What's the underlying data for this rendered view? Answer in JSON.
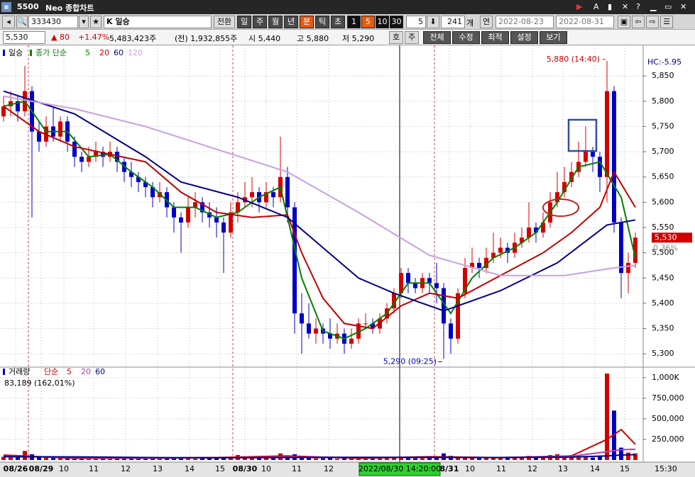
{
  "title_bar": {
    "screen_no": "5500",
    "title": "Neo 종합차트"
  },
  "toolbar": {
    "stock_code": "333430",
    "stock_name": "K 일승",
    "convert": "전환",
    "periods": [
      "일",
      "주",
      "월",
      "년",
      "분",
      "틱",
      "초"
    ],
    "minutes": [
      "1",
      "5",
      "10",
      "30"
    ],
    "interval": "5",
    "count": "241",
    "count_unit": "개",
    "continuous": "연",
    "start_date": "2022-08-23",
    "end_date": "2022-08-31"
  },
  "info_bar": {
    "price": "5,530",
    "change": "▲ 80",
    "change_rate": "+1.47%",
    "volume": "5,483,423주",
    "prev_volume": "(전) 1,932,855주",
    "open": "시 5,440",
    "high": "고 5,880",
    "low": "저 5,290",
    "quote_buttons": [
      "호",
      "주"
    ],
    "menu_buttons": [
      "전체",
      "수정",
      "최적",
      "설정",
      "보기"
    ]
  },
  "chart_data": [
    {
      "type": "candlestick",
      "name": "일승",
      "ma_label": "종가 단순",
      "up_color": "#d40000",
      "down_color": "#0000c8",
      "grid": true,
      "candles": [
        [
          5770,
          5810,
          5760,
          5790
        ],
        [
          5790,
          5820,
          5770,
          5800
        ],
        [
          5800,
          5810,
          5760,
          5780
        ],
        [
          5780,
          5870,
          5770,
          5820
        ],
        [
          5820,
          5830,
          5570,
          5740
        ],
        [
          5740,
          5760,
          5700,
          5720
        ],
        [
          5720,
          5770,
          5710,
          5750
        ],
        [
          5750,
          5790,
          5720,
          5730
        ],
        [
          5730,
          5770,
          5720,
          5760
        ],
        [
          5760,
          5770,
          5700,
          5720
        ],
        [
          5720,
          5730,
          5670,
          5690
        ],
        [
          5690,
          5700,
          5660,
          5680
        ],
        [
          5680,
          5710,
          5670,
          5690
        ],
        [
          5690,
          5720,
          5680,
          5700
        ],
        [
          5700,
          5710,
          5670,
          5690
        ],
        [
          5690,
          5720,
          5680,
          5700
        ],
        [
          5700,
          5710,
          5660,
          5680
        ],
        [
          5680,
          5690,
          5640,
          5660
        ],
        [
          5660,
          5680,
          5630,
          5650
        ],
        [
          5650,
          5660,
          5620,
          5640
        ],
        [
          5640,
          5650,
          5610,
          5630
        ],
        [
          5630,
          5640,
          5590,
          5610
        ],
        [
          5610,
          5640,
          5600,
          5620
        ],
        [
          5620,
          5630,
          5570,
          5590
        ],
        [
          5590,
          5600,
          5540,
          5570
        ],
        [
          5570,
          5580,
          5500,
          5560
        ],
        [
          5560,
          5610,
          5550,
          5590
        ],
        [
          5590,
          5620,
          5570,
          5600
        ],
        [
          5600,
          5610,
          5560,
          5580
        ],
        [
          5580,
          5600,
          5550,
          5570
        ],
        [
          5570,
          5590,
          5530,
          5560
        ],
        [
          5560,
          5570,
          5460,
          5540
        ],
        [
          5540,
          5600,
          5530,
          5580
        ],
        [
          5580,
          5620,
          5560,
          5600
        ],
        [
          5600,
          5640,
          5590,
          5610
        ],
        [
          5610,
          5650,
          5590,
          5620
        ],
        [
          5620,
          5630,
          5580,
          5600
        ],
        [
          5600,
          5640,
          5590,
          5620
        ],
        [
          5620,
          5630,
          5590,
          5610
        ],
        [
          5610,
          5730,
          5600,
          5650
        ],
        [
          5650,
          5670,
          5560,
          5590
        ],
        [
          5590,
          5600,
          5340,
          5380
        ],
        [
          5380,
          5420,
          5300,
          5360
        ],
        [
          5360,
          5400,
          5330,
          5340
        ],
        [
          5340,
          5370,
          5320,
          5350
        ],
        [
          5350,
          5360,
          5320,
          5340
        ],
        [
          5340,
          5370,
          5310,
          5330
        ],
        [
          5330,
          5360,
          5320,
          5340
        ],
        [
          5340,
          5350,
          5300,
          5320
        ],
        [
          5320,
          5350,
          5310,
          5330
        ],
        [
          5330,
          5370,
          5320,
          5360
        ],
        [
          5360,
          5380,
          5350,
          5360
        ],
        [
          5360,
          5370,
          5340,
          5350
        ],
        [
          5350,
          5380,
          5340,
          5370
        ],
        [
          5370,
          5400,
          5360,
          5390
        ],
        [
          5390,
          5430,
          5380,
          5420
        ],
        [
          5420,
          5470,
          5410,
          5460
        ],
        [
          5460,
          5470,
          5420,
          5440
        ],
        [
          5440,
          5450,
          5420,
          5430
        ],
        [
          5430,
          5460,
          5420,
          5450
        ],
        [
          5450,
          5460,
          5420,
          5440
        ],
        [
          5440,
          5480,
          5400,
          5430
        ],
        [
          5430,
          5440,
          5290,
          5360
        ],
        [
          5360,
          5370,
          5300,
          5330
        ],
        [
          5330,
          5430,
          5320,
          5420
        ],
        [
          5420,
          5490,
          5410,
          5470
        ],
        [
          5470,
          5510,
          5460,
          5480
        ],
        [
          5480,
          5490,
          5450,
          5470
        ],
        [
          5470,
          5510,
          5460,
          5490
        ],
        [
          5490,
          5540,
          5480,
          5500
        ],
        [
          5500,
          5530,
          5490,
          5510
        ],
        [
          5510,
          5520,
          5480,
          5500
        ],
        [
          5500,
          5540,
          5490,
          5520
        ],
        [
          5520,
          5550,
          5510,
          5530
        ],
        [
          5530,
          5600,
          5520,
          5550
        ],
        [
          5550,
          5560,
          5520,
          5540
        ],
        [
          5540,
          5580,
          5530,
          5560
        ],
        [
          5560,
          5620,
          5550,
          5600
        ],
        [
          5600,
          5660,
          5590,
          5620
        ],
        [
          5620,
          5670,
          5610,
          5640
        ],
        [
          5640,
          5680,
          5630,
          5660
        ],
        [
          5660,
          5720,
          5650,
          5680
        ],
        [
          5680,
          5750,
          5670,
          5700
        ],
        [
          5700,
          5710,
          5660,
          5690
        ],
        [
          5690,
          5700,
          5620,
          5650
        ],
        [
          5650,
          5880,
          5600,
          5820
        ],
        [
          5820,
          5830,
          5540,
          5560
        ],
        [
          5560,
          5570,
          5410,
          5460
        ],
        [
          5460,
          5500,
          5420,
          5480
        ],
        [
          5480,
          5540,
          5470,
          5530
        ]
      ],
      "xlim": [
        -0.5,
        90.1
      ],
      "xticks": [
        {
          "value": 1.7,
          "label": "08/26"
        },
        {
          "value": 5.3,
          "label": "08/29"
        },
        {
          "value": 8.5,
          "label": "10"
        },
        {
          "value": 12.7,
          "label": "11"
        },
        {
          "value": 17.2,
          "label": "12"
        },
        {
          "value": 21.7,
          "label": "13"
        },
        {
          "value": 26.2,
          "label": "14"
        },
        {
          "value": 30.5,
          "label": "15"
        },
        {
          "value": 34,
          "label": "08/30"
        },
        {
          "value": 37,
          "label": "10"
        },
        {
          "value": 41.3,
          "label": "11"
        },
        {
          "value": 45.8,
          "label": "12"
        },
        {
          "value": 62.8,
          "label": "8/31"
        },
        {
          "value": 65.7,
          "label": "10"
        },
        {
          "value": 70.1,
          "label": "11"
        },
        {
          "value": 74.5,
          "label": "12"
        },
        {
          "value": 78.8,
          "label": "13"
        },
        {
          "value": 83.3,
          "label": "14"
        },
        {
          "value": 87.5,
          "label": "15"
        }
      ],
      "ylim": [
        5275,
        5905
      ],
      "yticks": [
        {
          "value": 5300,
          "label": "5,300"
        },
        {
          "value": 5350,
          "label": "5,350"
        },
        {
          "value": 5400,
          "label": "5,400"
        },
        {
          "value": 5450,
          "label": "5,450"
        },
        {
          "value": 5500,
          "label": "5,500"
        },
        {
          "value": 5550,
          "label": "5,550"
        },
        {
          "value": 5600,
          "label": "5,600"
        },
        {
          "value": 5650,
          "label": "5,650"
        },
        {
          "value": 5700,
          "label": "5,700"
        },
        {
          "value": 5750,
          "label": "5,750"
        },
        {
          "value": 5800,
          "label": "5,800"
        },
        {
          "value": 5850,
          "label": "5,850"
        }
      ],
      "moving_averages": [
        {
          "name": "5",
          "color": "#008000",
          "x": [
            0,
            3,
            6,
            9,
            12,
            15,
            18,
            21,
            24,
            27,
            30,
            33,
            36,
            39,
            42,
            45,
            48,
            51,
            54,
            57,
            60,
            63,
            66,
            69,
            72,
            75,
            78,
            81,
            84,
            87,
            89
          ],
          "values": [
            5790,
            5800,
            5740,
            5740,
            5690,
            5695,
            5660,
            5630,
            5590,
            5590,
            5570,
            5580,
            5610,
            5630,
            5450,
            5345,
            5330,
            5350,
            5380,
            5440,
            5440,
            5380,
            5450,
            5490,
            5510,
            5540,
            5600,
            5670,
            5680,
            5610,
            5490
          ]
        },
        {
          "name": "20",
          "color": "#c00000",
          "x": [
            0,
            5,
            10,
            15,
            20,
            25,
            30,
            35,
            40,
            42,
            45,
            48,
            52,
            56,
            60,
            64,
            68,
            72,
            76,
            80,
            84,
            86,
            89
          ],
          "values": [
            5790,
            5740,
            5710,
            5695,
            5680,
            5620,
            5580,
            5570,
            5575,
            5500,
            5410,
            5360,
            5350,
            5395,
            5420,
            5410,
            5440,
            5470,
            5500,
            5540,
            5590,
            5660,
            5590
          ]
        },
        {
          "name": "60",
          "color": "#00008b",
          "x": [
            0,
            10,
            20,
            25,
            33,
            40,
            50,
            55,
            62,
            70,
            78,
            85,
            89
          ],
          "values": [
            5820,
            5775,
            5690,
            5640,
            5610,
            5570,
            5450,
            5420,
            5385,
            5425,
            5480,
            5555,
            5565
          ]
        },
        {
          "name": "120",
          "color": "#c8a0e0",
          "x": [
            0,
            10,
            20,
            30,
            40,
            50,
            60,
            70,
            79,
            86,
            89
          ],
          "values": [
            5810,
            5785,
            5750,
            5705,
            5660,
            5580,
            5495,
            5455,
            5455,
            5470,
            5475
          ]
        }
      ],
      "annotations": [
        {
          "text": "5,880 (14:40)",
          "x": 85,
          "y": 5880
        },
        {
          "text": "5,290 (09:25)",
          "x": 62,
          "y": 5290
        }
      ],
      "current": {
        "value": 5530,
        "label": "5,530"
      },
      "change_label": "0.36%",
      "hc_label": "HC:-5.95",
      "cursor_label": "2022/08/30 14:20:00",
      "axis_corner": "15:30"
    },
    {
      "type": "bar",
      "name": "거래량",
      "ma_label": "단순",
      "info": "83,189 (162,01%)",
      "values": [
        40000,
        30000,
        60000,
        110000,
        70000,
        40000,
        30000,
        25000,
        30000,
        20000,
        20000,
        15000,
        20000,
        25000,
        15000,
        20000,
        15000,
        20000,
        25000,
        20000,
        20000,
        15000,
        20000,
        30000,
        25000,
        30000,
        20000,
        15000,
        25000,
        20000,
        20000,
        35000,
        30000,
        60000,
        40000,
        30000,
        25000,
        30000,
        35000,
        80000,
        40000,
        70000,
        50000,
        30000,
        20000,
        20000,
        25000,
        15000,
        20000,
        20000,
        15000,
        20000,
        15000,
        20000,
        25000,
        30000,
        40000,
        25000,
        20000,
        20000,
        25000,
        30000,
        80000,
        50000,
        40000,
        30000,
        25000,
        20000,
        25000,
        30000,
        20000,
        25000,
        30000,
        35000,
        50000,
        40000,
        35000,
        60000,
        70000,
        50000,
        60000,
        45000,
        40000,
        30000,
        50000,
        1050000,
        600000,
        150000,
        90000,
        80000
      ],
      "ylim": [
        0,
        1110000
      ],
      "yticks": [
        {
          "value": 250000,
          "label": "250,000"
        },
        {
          "value": 500000,
          "label": "500,000"
        },
        {
          "value": 750000,
          "label": "750,000"
        },
        {
          "value": 1000000,
          "label": "1,000K"
        }
      ],
      "moving_averages": [
        {
          "name": "5",
          "color": "#d00000",
          "x": [
            0,
            10,
            20,
            30,
            40,
            50,
            60,
            70,
            80,
            85,
            87,
            89
          ],
          "values": [
            60000,
            20000,
            22000,
            30000,
            50000,
            20000,
            40000,
            28000,
            50000,
            250000,
            370000,
            190000
          ]
        },
        {
          "name": "20",
          "color": "#b040b0",
          "x": [
            0,
            10,
            20,
            30,
            40,
            50,
            60,
            70,
            80,
            85,
            87,
            89
          ],
          "values": [
            45000,
            30000,
            22000,
            28000,
            38000,
            30000,
            30000,
            30000,
            45000,
            100000,
            125000,
            130000
          ]
        },
        {
          "name": "60",
          "color": "#000080",
          "x": [
            0,
            10,
            20,
            30,
            40,
            50,
            60,
            70,
            80,
            85,
            87,
            89
          ],
          "values": [
            40000,
            38000,
            30000,
            27000,
            30000,
            32000,
            32000,
            30000,
            35000,
            50000,
            60000,
            65000
          ]
        }
      ]
    }
  ]
}
